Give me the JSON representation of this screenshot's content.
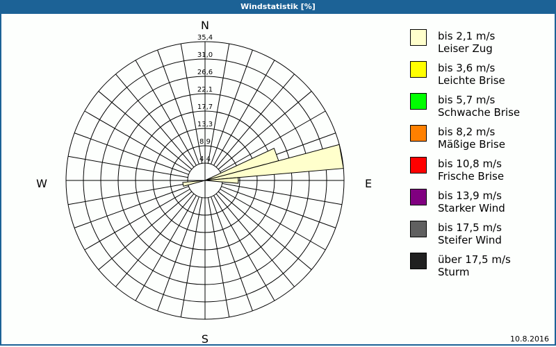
{
  "window": {
    "title": "Windstatistik [%]",
    "date": "10.8.2016"
  },
  "chart_data": {
    "type": "wind-rose",
    "title": "Windstatistik [%]",
    "directions": {
      "N": "N",
      "E": "E",
      "S": "S",
      "W": "W"
    },
    "ring_labels": [
      "4,4",
      "8,9",
      "13,3",
      "17,7",
      "22,1",
      "26,6",
      "31,0",
      "35,4"
    ],
    "rmax": 35.4,
    "sector_width_deg": 10,
    "grid": true,
    "legend_placement": "right",
    "sectors": [
      {
        "direction_deg": 70,
        "class": 0,
        "value": 19.4
      },
      {
        "direction_deg": 80,
        "class": 0,
        "value": 35.4
      },
      {
        "direction_deg": 90,
        "class": 0,
        "value": 8.5
      },
      {
        "direction_deg": 260,
        "class": 0,
        "value": 5.7
      }
    ],
    "legend": [
      {
        "line1": "bis 2,1 m/s",
        "line2": "Leiser Zug",
        "color": "#ffffcc"
      },
      {
        "line1": "bis 3,6 m/s",
        "line2": "Leichte Brise",
        "color": "#ffff00"
      },
      {
        "line1": "bis 5,7 m/s",
        "line2": "Schwache Brise",
        "color": "#00ff00"
      },
      {
        "line1": "bis 8,2 m/s",
        "line2": "Mäßige Brise",
        "color": "#ff8000"
      },
      {
        "line1": "bis 10,8 m/s",
        "line2": "Frische Brise",
        "color": "#ff0000"
      },
      {
        "line1": "bis 13,9 m/s",
        "line2": "Starker Wind",
        "color": "#800080"
      },
      {
        "line1": "bis 17,5 m/s",
        "line2": "Steifer Wind",
        "color": "#606060"
      },
      {
        "line1": "über 17,5 m/s",
        "line2": "Sturm",
        "color": "#202020"
      }
    ]
  }
}
